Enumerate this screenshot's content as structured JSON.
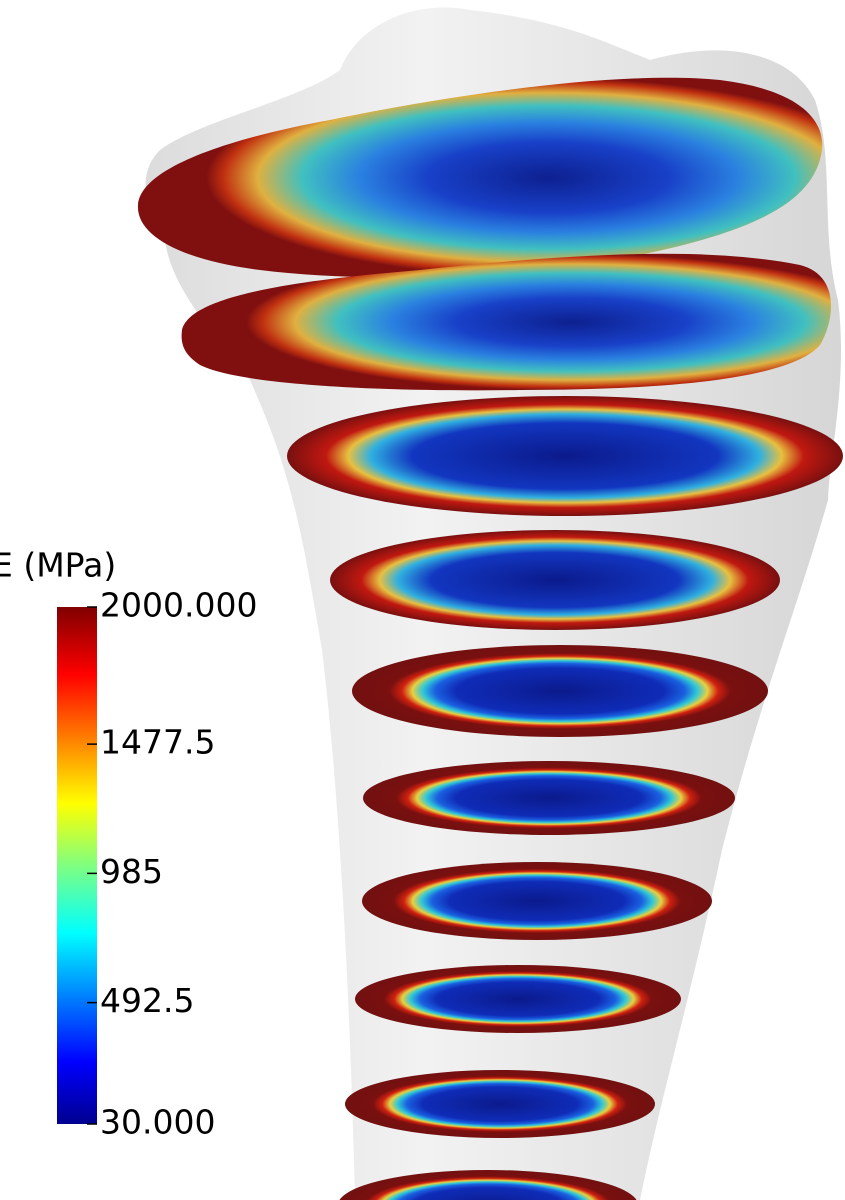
{
  "colorbar": {
    "title": "E (MPa)",
    "range": [
      30,
      2000
    ],
    "ticks": [
      {
        "value": 2000,
        "label": "2000.000"
      },
      1477.5,
      985,
      492.5,
      {
        "value": 30,
        "label": "30.000"
      }
    ]
  }
}
